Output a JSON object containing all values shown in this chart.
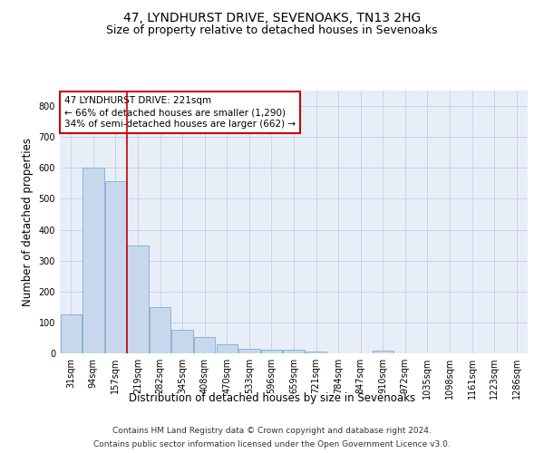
{
  "title": "47, LYNDHURST DRIVE, SEVENOAKS, TN13 2HG",
  "subtitle": "Size of property relative to detached houses in Sevenoaks",
  "xlabel": "Distribution of detached houses by size in Sevenoaks",
  "ylabel": "Number of detached properties",
  "categories": [
    "31sqm",
    "94sqm",
    "157sqm",
    "219sqm",
    "282sqm",
    "345sqm",
    "408sqm",
    "470sqm",
    "533sqm",
    "596sqm",
    "659sqm",
    "721sqm",
    "784sqm",
    "847sqm",
    "910sqm",
    "972sqm",
    "1035sqm",
    "1098sqm",
    "1161sqm",
    "1223sqm",
    "1286sqm"
  ],
  "values": [
    125,
    600,
    557,
    348,
    150,
    75,
    52,
    30,
    14,
    12,
    12,
    5,
    0,
    0,
    8,
    0,
    0,
    0,
    0,
    0,
    0
  ],
  "bar_color": "#c8d8ec",
  "bar_edge_color": "#7aadd4",
  "grid_color": "#c8d4e8",
  "bg_color": "#e8eef8",
  "annotation_line1": "47 LYNDHURST DRIVE: 221sqm",
  "annotation_line2": "← 66% of detached houses are smaller (1,290)",
  "annotation_line3": "34% of semi-detached houses are larger (662) →",
  "annotation_box_color": "#cc0000",
  "vline_color": "#cc0000",
  "vline_x": 2.5,
  "ylim": [
    0,
    850
  ],
  "yticks": [
    0,
    100,
    200,
    300,
    400,
    500,
    600,
    700,
    800
  ],
  "footer_line1": "Contains HM Land Registry data © Crown copyright and database right 2024.",
  "footer_line2": "Contains public sector information licensed under the Open Government Licence v3.0.",
  "title_fontsize": 10,
  "subtitle_fontsize": 9,
  "axis_label_fontsize": 8.5,
  "tick_fontsize": 7,
  "annotation_fontsize": 7.5,
  "footer_fontsize": 6.5
}
